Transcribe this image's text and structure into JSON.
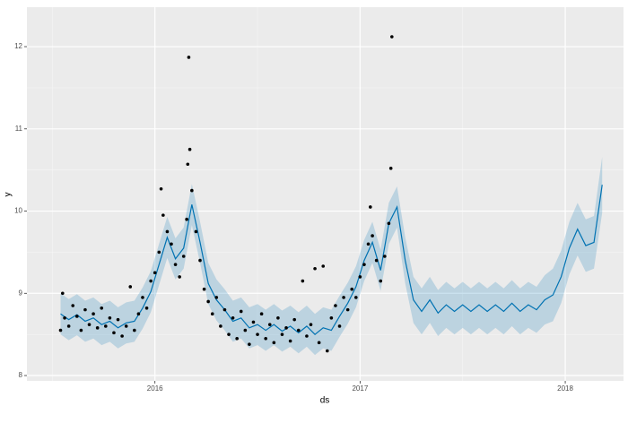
{
  "chart_data": {
    "type": "forecast",
    "x_label": "ds",
    "y_label": "y",
    "xlim": [
      2015.376,
      2018.284
    ],
    "ylim": [
      7.935,
      12.48
    ],
    "xticks": [
      2016,
      2017,
      2018
    ],
    "yticks": [
      8,
      9,
      10,
      11,
      12
    ],
    "grid": true,
    "observed": {
      "color": "#000000",
      "x": [
        2015.54,
        2015.55,
        2015.56,
        2015.58,
        2015.6,
        2015.62,
        2015.64,
        2015.66,
        2015.68,
        2015.7,
        2015.72,
        2015.74,
        2015.76,
        2015.78,
        2015.8,
        2015.82,
        2015.84,
        2015.86,
        2015.88,
        2015.9,
        2015.92,
        2015.94,
        2015.96,
        2015.98,
        2016.0,
        2016.02,
        2016.03,
        2016.04,
        2016.06,
        2016.08,
        2016.1,
        2016.12,
        2016.14,
        2016.155,
        2016.16,
        2016.165,
        2016.17,
        2016.18,
        2016.2,
        2016.22,
        2016.24,
        2016.26,
        2016.28,
        2016.3,
        2016.32,
        2016.34,
        2016.36,
        2016.38,
        2016.4,
        2016.42,
        2016.44,
        2016.46,
        2016.48,
        2016.5,
        2016.52,
        2016.54,
        2016.56,
        2016.58,
        2016.6,
        2016.62,
        2016.64,
        2016.66,
        2016.68,
        2016.7,
        2016.72,
        2016.74,
        2016.76,
        2016.78,
        2016.8,
        2016.82,
        2016.84,
        2016.86,
        2016.88,
        2016.9,
        2016.92,
        2016.94,
        2016.96,
        2016.98,
        2017.0,
        2017.02,
        2017.04,
        2017.05,
        2017.06,
        2017.08,
        2017.1,
        2017.12,
        2017.14,
        2017.15,
        2017.155
      ],
      "y": [
        8.55,
        9.0,
        8.7,
        8.6,
        8.85,
        8.72,
        8.55,
        8.8,
        8.62,
        8.75,
        8.58,
        8.82,
        8.6,
        8.7,
        8.52,
        8.68,
        8.48,
        8.6,
        9.08,
        8.55,
        8.75,
        8.95,
        8.82,
        9.15,
        9.25,
        9.5,
        10.27,
        9.95,
        9.75,
        9.6,
        9.35,
        9.2,
        9.45,
        9.9,
        10.57,
        11.87,
        10.75,
        10.25,
        9.75,
        9.4,
        9.05,
        8.9,
        8.75,
        8.95,
        8.6,
        8.8,
        8.5,
        8.7,
        8.45,
        8.78,
        8.55,
        8.38,
        8.65,
        8.5,
        8.75,
        8.45,
        8.62,
        8.4,
        8.7,
        8.5,
        8.58,
        8.42,
        8.68,
        8.55,
        9.15,
        8.48,
        8.62,
        9.3,
        8.4,
        9.33,
        8.3,
        8.7,
        8.85,
        8.6,
        8.95,
        8.8,
        9.05,
        8.95,
        9.2,
        9.35,
        9.6,
        10.05,
        9.7,
        9.4,
        9.15,
        9.45,
        9.85,
        10.52,
        12.12
      ]
    },
    "forecast": {
      "color": "#0072b2",
      "x": [
        2015.54,
        2015.58,
        2015.62,
        2015.66,
        2015.7,
        2015.74,
        2015.78,
        2015.82,
        2015.86,
        2015.9,
        2015.94,
        2015.98,
        2016.02,
        2016.06,
        2016.1,
        2016.14,
        2016.18,
        2016.22,
        2016.26,
        2016.3,
        2016.34,
        2016.38,
        2016.42,
        2016.46,
        2016.5,
        2016.54,
        2016.58,
        2016.62,
        2016.66,
        2016.7,
        2016.74,
        2016.78,
        2016.82,
        2016.86,
        2016.9,
        2016.94,
        2016.98,
        2017.02,
        2017.06,
        2017.1,
        2017.14,
        2017.18,
        2017.22,
        2017.26,
        2017.3,
        2017.34,
        2017.38,
        2017.42,
        2017.46,
        2017.5,
        2017.54,
        2017.58,
        2017.62,
        2017.66,
        2017.7,
        2017.74,
        2017.78,
        2017.82,
        2017.86,
        2017.9,
        2017.94,
        2017.98,
        2018.02,
        2018.06,
        2018.1,
        2018.14,
        2018.18
      ],
      "yhat": [
        8.75,
        8.68,
        8.74,
        8.66,
        8.7,
        8.62,
        8.66,
        8.58,
        8.64,
        8.66,
        8.82,
        9.02,
        9.35,
        9.68,
        9.42,
        9.55,
        10.08,
        9.62,
        9.12,
        8.92,
        8.8,
        8.66,
        8.7,
        8.58,
        8.62,
        8.55,
        8.62,
        8.54,
        8.6,
        8.52,
        8.6,
        8.5,
        8.58,
        8.55,
        8.72,
        8.88,
        9.08,
        9.4,
        9.62,
        9.28,
        9.85,
        10.05,
        9.4,
        8.92,
        8.78,
        8.92,
        8.76,
        8.86,
        8.78,
        8.86,
        8.78,
        8.86,
        8.78,
        8.86,
        8.78,
        8.88,
        8.78,
        8.86,
        8.8,
        8.92,
        8.98,
        9.2,
        9.55,
        9.78,
        9.58,
        9.62,
        10.32
      ],
      "yhat_lower": [
        8.5,
        8.43,
        8.49,
        8.41,
        8.45,
        8.37,
        8.41,
        8.33,
        8.39,
        8.41,
        8.57,
        8.77,
        9.1,
        9.43,
        9.17,
        9.3,
        9.83,
        9.37,
        8.87,
        8.67,
        8.55,
        8.41,
        8.45,
        8.33,
        8.37,
        8.3,
        8.37,
        8.29,
        8.35,
        8.27,
        8.35,
        8.25,
        8.33,
        8.3,
        8.47,
        8.63,
        8.83,
        9.15,
        9.37,
        9.03,
        9.6,
        9.8,
        9.12,
        8.64,
        8.5,
        8.64,
        8.48,
        8.58,
        8.5,
        8.58,
        8.5,
        8.58,
        8.5,
        8.58,
        8.5,
        8.6,
        8.5,
        8.58,
        8.52,
        8.62,
        8.66,
        8.88,
        9.23,
        9.46,
        9.26,
        9.3,
        9.98
      ],
      "yhat_upper": [
        9.0,
        8.93,
        8.99,
        8.91,
        8.95,
        8.87,
        8.91,
        8.83,
        8.89,
        8.91,
        9.07,
        9.27,
        9.6,
        9.93,
        9.67,
        9.8,
        10.33,
        9.87,
        9.37,
        9.17,
        9.05,
        8.91,
        8.95,
        8.83,
        8.87,
        8.8,
        8.87,
        8.79,
        8.85,
        8.77,
        8.85,
        8.75,
        8.83,
        8.8,
        8.97,
        9.13,
        9.33,
        9.65,
        9.87,
        9.53,
        10.1,
        10.3,
        9.68,
        9.2,
        9.06,
        9.2,
        9.04,
        9.14,
        9.06,
        9.14,
        9.06,
        9.14,
        9.06,
        9.14,
        9.06,
        9.16,
        9.06,
        9.14,
        9.08,
        9.22,
        9.3,
        9.52,
        9.87,
        10.1,
        9.9,
        9.94,
        10.66
      ]
    }
  }
}
